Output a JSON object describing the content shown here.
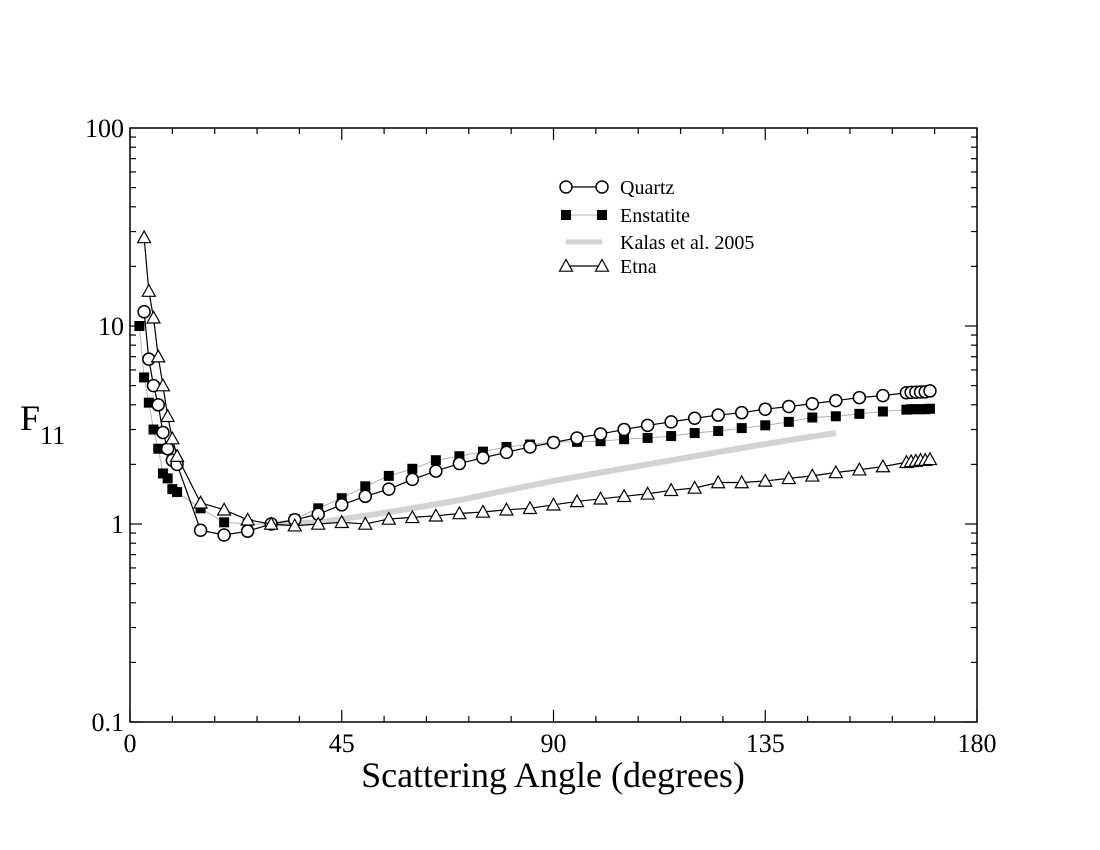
{
  "chart_data": {
    "type": "line",
    "title": "",
    "xlabel": "Scattering Angle (degrees)",
    "ylabel_main": "F",
    "ylabel_sub": "11",
    "xlim": [
      0,
      180
    ],
    "ylim": [
      0.1,
      100
    ],
    "yscale": "log",
    "x_ticks": [
      0,
      45,
      90,
      135,
      180
    ],
    "x_tick_labels": [
      "0",
      "45",
      "90",
      "135",
      "180"
    ],
    "y_ticks": [
      0.1,
      1,
      10,
      100
    ],
    "y_tick_labels": [
      "0.1",
      "1",
      "10",
      "100"
    ],
    "legend_position": "top-right",
    "series": [
      {
        "name": "Quartz",
        "marker": "circle-open",
        "line": "solid",
        "color": "#000000",
        "x": [
          3,
          4,
          5,
          6,
          7,
          8,
          9,
          10,
          15,
          20,
          25,
          30,
          35,
          40,
          45,
          50,
          55,
          60,
          65,
          70,
          75,
          80,
          85,
          90,
          95,
          100,
          105,
          110,
          115,
          120,
          125,
          130,
          135,
          140,
          145,
          150,
          155,
          160,
          165,
          166,
          167,
          168,
          169,
          170
        ],
        "values": [
          11.8,
          6.8,
          5.0,
          4.0,
          2.9,
          2.4,
          2.1,
          2.0,
          0.93,
          0.88,
          0.92,
          1.0,
          1.05,
          1.12,
          1.25,
          1.38,
          1.5,
          1.68,
          1.85,
          2.02,
          2.16,
          2.3,
          2.45,
          2.58,
          2.72,
          2.85,
          3.0,
          3.15,
          3.28,
          3.42,
          3.55,
          3.65,
          3.8,
          3.92,
          4.05,
          4.2,
          4.35,
          4.45,
          4.6,
          4.62,
          4.63,
          4.64,
          4.65,
          4.7
        ]
      },
      {
        "name": "Enstatite",
        "marker": "square-filled",
        "line": "solid-gray",
        "color": "#000000",
        "x": [
          2,
          3,
          4,
          5,
          6,
          7,
          8,
          9,
          10,
          15,
          20,
          25,
          30,
          35,
          40,
          45,
          50,
          55,
          60,
          65,
          70,
          75,
          80,
          85,
          90,
          95,
          100,
          105,
          110,
          115,
          120,
          125,
          130,
          135,
          140,
          145,
          150,
          155,
          160,
          165,
          166,
          167,
          168,
          169,
          170
        ],
        "values": [
          10.0,
          5.5,
          4.1,
          3.0,
          2.4,
          1.8,
          1.7,
          1.5,
          1.45,
          1.2,
          1.02,
          1.0,
          1.0,
          1.06,
          1.2,
          1.35,
          1.55,
          1.75,
          1.9,
          2.1,
          2.2,
          2.32,
          2.45,
          2.52,
          2.6,
          2.6,
          2.62,
          2.68,
          2.72,
          2.78,
          2.88,
          2.95,
          3.05,
          3.15,
          3.28,
          3.45,
          3.5,
          3.6,
          3.7,
          3.78,
          3.8,
          3.8,
          3.8,
          3.8,
          3.82
        ]
      },
      {
        "name": "Kalas et al. 2005",
        "marker": "none",
        "line": "thick-light-gray",
        "color": "#d3d3d3",
        "x": [
          30,
          40,
          50,
          60,
          70,
          80,
          90,
          100,
          110,
          120,
          130,
          140,
          150
        ],
        "values": [
          1.0,
          1.02,
          1.1,
          1.2,
          1.32,
          1.48,
          1.65,
          1.82,
          2.0,
          2.2,
          2.42,
          2.65,
          2.88
        ]
      },
      {
        "name": "Etna",
        "marker": "triangle-open",
        "line": "solid",
        "color": "#000000",
        "x": [
          3,
          4,
          5,
          6,
          7,
          8,
          9,
          10,
          15,
          20,
          25,
          30,
          35,
          40,
          45,
          50,
          55,
          60,
          65,
          70,
          75,
          80,
          85,
          90,
          95,
          100,
          105,
          110,
          115,
          120,
          125,
          130,
          135,
          140,
          145,
          150,
          155,
          160,
          165,
          166,
          167,
          168,
          169,
          170
        ],
        "values": [
          28.0,
          15.0,
          11.0,
          7.0,
          5.0,
          3.5,
          2.7,
          2.2,
          1.28,
          1.18,
          1.05,
          1.0,
          0.98,
          1.0,
          1.02,
          1.0,
          1.06,
          1.08,
          1.1,
          1.13,
          1.15,
          1.18,
          1.2,
          1.25,
          1.3,
          1.34,
          1.38,
          1.42,
          1.48,
          1.52,
          1.62,
          1.62,
          1.65,
          1.7,
          1.75,
          1.82,
          1.88,
          1.95,
          2.05,
          2.07,
          2.08,
          2.1,
          2.1,
          2.12
        ]
      }
    ]
  }
}
